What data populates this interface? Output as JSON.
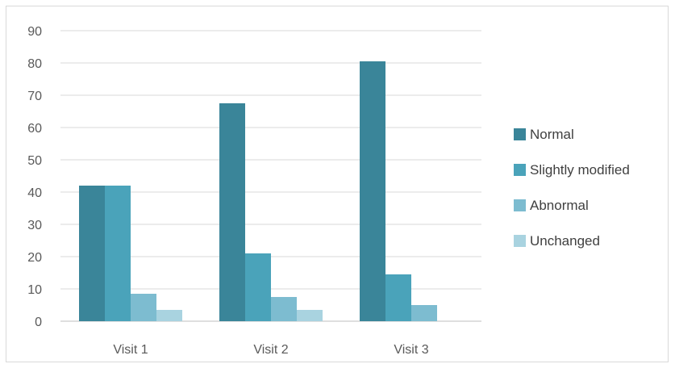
{
  "chart_data": {
    "type": "bar",
    "categories": [
      "Visit 1",
      "Visit 2",
      "Visit 3"
    ],
    "series": [
      {
        "name": "Normal",
        "values": [
          42,
          67.5,
          80.5
        ],
        "color": "#3a8599"
      },
      {
        "name": "Slightly modified",
        "values": [
          42,
          21,
          14.5
        ],
        "color": "#4aa3ba"
      },
      {
        "name": "Abnormal",
        "values": [
          8.5,
          7.5,
          5
        ],
        "color": "#7dbcd0"
      },
      {
        "name": "Unchanged",
        "values": [
          3.5,
          3.5,
          0
        ],
        "color": "#a9d3e0"
      }
    ],
    "title": "",
    "xlabel": "",
    "ylabel": "",
    "ylim": [
      0,
      90
    ],
    "yticks": [
      0,
      10,
      20,
      30,
      40,
      50,
      60,
      70,
      80,
      90
    ],
    "grid": true,
    "legend_position": "right"
  }
}
